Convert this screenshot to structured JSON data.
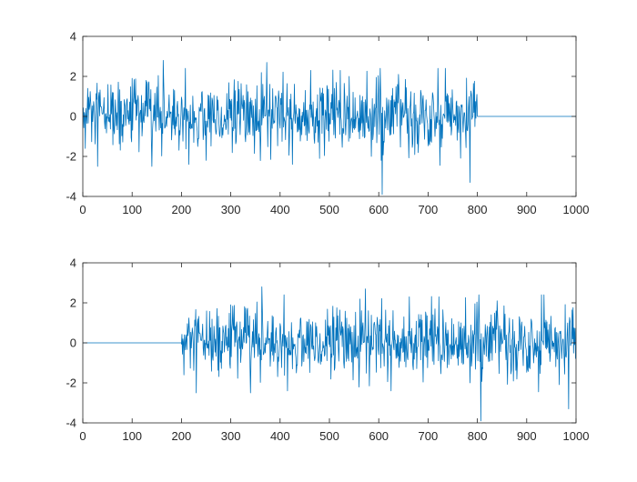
{
  "figure": {
    "background": "#ffffff",
    "axis_color": "#262626",
    "line_color": "#0072bd"
  },
  "chart_data": [
    {
      "type": "line",
      "title": "",
      "xlabel": "",
      "ylabel": "",
      "xlim": [
        0,
        1000
      ],
      "ylim": [
        -4,
        4
      ],
      "xticks": [
        "0",
        "100",
        "200",
        "300",
        "400",
        "500",
        "600",
        "700",
        "800",
        "900",
        "1000"
      ],
      "yticks": [
        "-4",
        "-2",
        "0",
        "2",
        "4"
      ],
      "grid": false,
      "series": [
        {
          "color": "#0072bd",
          "description": "random noise from x=0 to x=800 (approx. std 0.9, min -3.9 near x=607, max 2.8 near x=163 and x=373), constant 0 from x=800 to x=1000",
          "samples": [
            {
              "x": 0,
              "y": 0.3
            },
            {
              "x": 5,
              "y": -1.6
            },
            {
              "x": 10,
              "y": 1.4
            },
            {
              "x": 30,
              "y": -2.5
            },
            {
              "x": 60,
              "y": 1.2
            },
            {
              "x": 100,
              "y": 1.9
            },
            {
              "x": 128,
              "y": 1.8
            },
            {
              "x": 140,
              "y": -2.5
            },
            {
              "x": 163,
              "y": 2.8
            },
            {
              "x": 215,
              "y": -2.4
            },
            {
              "x": 250,
              "y": -2.2
            },
            {
              "x": 373,
              "y": 2.7
            },
            {
              "x": 425,
              "y": -2.4
            },
            {
              "x": 462,
              "y": 2.3
            },
            {
              "x": 480,
              "y": -2.1
            },
            {
              "x": 522,
              "y": 2.3
            },
            {
              "x": 540,
              "y": 2.0
            },
            {
              "x": 605,
              "y": -2.2
            },
            {
              "x": 607,
              "y": -3.9
            },
            {
              "x": 640,
              "y": 2.1
            },
            {
              "x": 720,
              "y": 2.4
            },
            {
              "x": 785,
              "y": -3.3
            },
            {
              "x": 799,
              "y": 1.1
            },
            {
              "x": 800,
              "y": 0
            },
            {
              "x": 1000,
              "y": 0
            }
          ]
        }
      ]
    },
    {
      "type": "line",
      "title": "",
      "xlabel": "",
      "ylabel": "",
      "xlim": [
        0,
        1000
      ],
      "ylim": [
        -4,
        4
      ],
      "xticks": [
        "0",
        "100",
        "200",
        "300",
        "400",
        "500",
        "600",
        "700",
        "800",
        "900",
        "1000"
      ],
      "yticks": [
        "-4",
        "-2",
        "0",
        "2",
        "4"
      ],
      "grid": false,
      "series": [
        {
          "color": "#0072bd",
          "description": "constant 0 from x=0 to x=200, then random noise from x=200 to x=1000 (approx. std 0.9, min -3.9 near x=807, max 2.8 near x=363)",
          "samples": [
            {
              "x": 0,
              "y": 0
            },
            {
              "x": 200,
              "y": 0
            },
            {
              "x": 205,
              "y": -1.6
            },
            {
              "x": 230,
              "y": -2.5
            },
            {
              "x": 300,
              "y": 1.9
            },
            {
              "x": 340,
              "y": -2.5
            },
            {
              "x": 363,
              "y": 2.8
            },
            {
              "x": 415,
              "y": -2.4
            },
            {
              "x": 573,
              "y": 2.7
            },
            {
              "x": 625,
              "y": -2.4
            },
            {
              "x": 662,
              "y": 2.3
            },
            {
              "x": 722,
              "y": 2.3
            },
            {
              "x": 807,
              "y": -3.9
            },
            {
              "x": 840,
              "y": 2.1
            },
            {
              "x": 930,
              "y": 2.4
            },
            {
              "x": 985,
              "y": -3.3
            },
            {
              "x": 1000,
              "y": 0.3
            }
          ]
        }
      ]
    }
  ]
}
